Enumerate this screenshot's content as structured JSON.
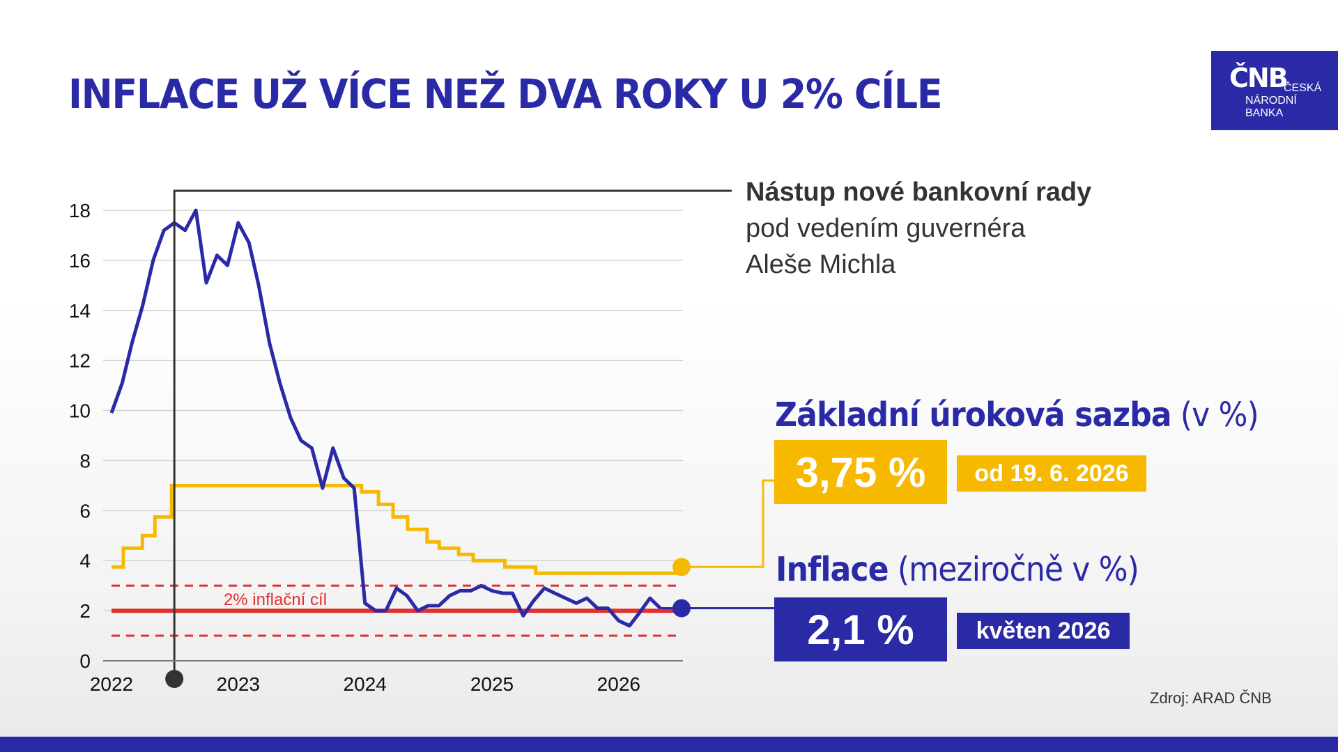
{
  "title": "INFLACE UŽ VÍCE NEŽ DVA ROKY U 2% CÍLE",
  "logo": {
    "mark": "ČNB",
    "line1": "ČESKÁ",
    "line2": "NÁRODNÍ",
    "line3": "BANKA"
  },
  "colors": {
    "navy": "#2a2aa6",
    "gold": "#f7b900",
    "red": "#e03030",
    "dark": "#333333",
    "grid": "#d2d2d2"
  },
  "annotation": {
    "bold": "Nástup nové bankovní rady",
    "line2": "pod vedením guvernéra",
    "line3": "Aleše Michla",
    "date": "2022-07-01"
  },
  "rate_block": {
    "title": "Základní úroková sazba",
    "unit": "(v %)",
    "value": "3,75 %",
    "date": "od 19. 6. 2026"
  },
  "inflation_block": {
    "title": "Inflace",
    "unit": "(meziročně v %)",
    "value": "2,1 %",
    "date": "květen 2026"
  },
  "source": "Zdroj: ARAD ČNB",
  "chart_data": {
    "type": "line",
    "title": "",
    "xlabel": "",
    "ylabel": "",
    "x_ticks": [
      "2022",
      "2023",
      "2024",
      "2025",
      "2026"
    ],
    "x_range": [
      "2022-01-01",
      "2026-07-01"
    ],
    "y_ticks": [
      0,
      2,
      4,
      6,
      8,
      10,
      12,
      14,
      16,
      18
    ],
    "ylim": [
      0,
      18
    ],
    "grid": "horizontal",
    "target": {
      "label": "2% inflační cíl",
      "value": 2,
      "band": [
        1,
        3
      ]
    },
    "series": [
      {
        "name": "Inflace",
        "color": "navy",
        "points": [
          [
            "2022-01",
            9.9
          ],
          [
            "2022-02",
            11.1
          ],
          [
            "2022-03",
            12.7
          ],
          [
            "2022-04",
            14.2
          ],
          [
            "2022-05",
            16.0
          ],
          [
            "2022-06",
            17.2
          ],
          [
            "2022-07",
            17.5
          ],
          [
            "2022-08",
            17.2
          ],
          [
            "2022-09",
            18.0
          ],
          [
            "2022-10",
            15.1
          ],
          [
            "2022-11",
            16.2
          ],
          [
            "2022-12",
            15.8
          ],
          [
            "2023-01",
            17.5
          ],
          [
            "2023-02",
            16.7
          ],
          [
            "2023-03",
            15.0
          ],
          [
            "2023-04",
            12.7
          ],
          [
            "2023-05",
            11.1
          ],
          [
            "2023-06",
            9.7
          ],
          [
            "2023-07",
            8.8
          ],
          [
            "2023-08",
            8.5
          ],
          [
            "2023-09",
            6.9
          ],
          [
            "2023-10",
            8.5
          ],
          [
            "2023-11",
            7.3
          ],
          [
            "2023-12",
            6.9
          ],
          [
            "2024-01",
            2.3
          ],
          [
            "2024-02",
            2.0
          ],
          [
            "2024-03",
            2.0
          ],
          [
            "2024-04",
            2.9
          ],
          [
            "2024-05",
            2.6
          ],
          [
            "2024-06",
            2.0
          ],
          [
            "2024-07",
            2.2
          ],
          [
            "2024-08",
            2.2
          ],
          [
            "2024-09",
            2.6
          ],
          [
            "2024-10",
            2.8
          ],
          [
            "2024-11",
            2.8
          ],
          [
            "2024-12",
            3.0
          ],
          [
            "2025-01",
            2.8
          ],
          [
            "2025-02",
            2.7
          ],
          [
            "2025-03",
            2.7
          ],
          [
            "2025-04",
            1.8
          ],
          [
            "2025-05",
            2.4
          ],
          [
            "2025-06",
            2.9
          ],
          [
            "2025-07",
            2.7
          ],
          [
            "2025-08",
            2.5
          ],
          [
            "2025-09",
            2.3
          ],
          [
            "2025-10",
            2.5
          ],
          [
            "2025-11",
            2.1
          ],
          [
            "2025-12",
            2.1
          ],
          [
            "2026-01",
            1.6
          ],
          [
            "2026-02",
            1.4
          ],
          [
            "2026-03",
            1.9
          ],
          [
            "2026-04",
            2.5
          ],
          [
            "2026-05",
            2.1
          ]
        ]
      },
      {
        "name": "Základní úroková sazba",
        "color": "gold",
        "step": true,
        "points": [
          [
            "2022-01-01",
            3.75
          ],
          [
            "2022-02-04",
            4.5
          ],
          [
            "2022-03-31",
            5.0
          ],
          [
            "2022-05-06",
            5.75
          ],
          [
            "2022-06-23",
            7.0
          ],
          [
            "2023-12-22",
            6.75
          ],
          [
            "2024-02-09",
            6.25
          ],
          [
            "2024-03-22",
            5.75
          ],
          [
            "2024-05-03",
            5.25
          ],
          [
            "2024-06-28",
            4.75
          ],
          [
            "2024-08-02",
            4.5
          ],
          [
            "2024-09-27",
            4.25
          ],
          [
            "2024-11-08",
            4.0
          ],
          [
            "2025-02-07",
            3.75
          ],
          [
            "2025-05-07",
            3.5
          ],
          [
            "2026-06-19",
            3.75
          ]
        ],
        "end": "2026-07-01"
      }
    ]
  }
}
